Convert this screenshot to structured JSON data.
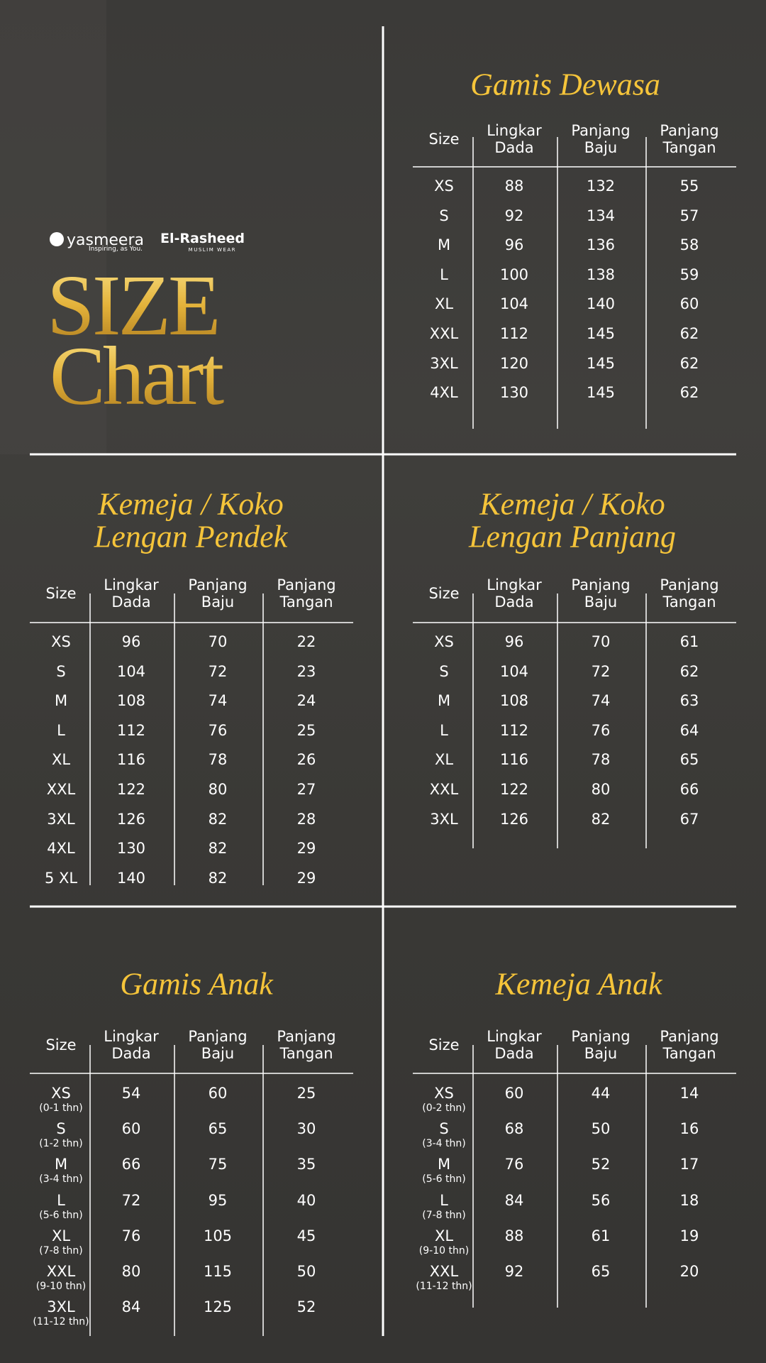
{
  "brand": {
    "logo1": "yasmeera",
    "tagline1": "Inspiring, as You.",
    "logo2": "El-Rasheed",
    "tagline2": "MUSLIM WEAR"
  },
  "title": [
    "SIZE",
    "Chart"
  ],
  "tables": [
    {
      "title": [
        "Gamis Dewasa"
      ],
      "headers": [
        "Size",
        "Lingkar Dada",
        "Panjang Baju",
        "Panjang Tangan"
      ],
      "rows": [
        {
          "size": "XS",
          "values": [
            88,
            132,
            55
          ]
        },
        {
          "size": "S",
          "values": [
            92,
            134,
            57
          ]
        },
        {
          "size": "M",
          "values": [
            96,
            136,
            58
          ]
        },
        {
          "size": "L",
          "values": [
            100,
            138,
            59
          ]
        },
        {
          "size": "XL",
          "values": [
            104,
            140,
            60
          ]
        },
        {
          "size": "XXL",
          "values": [
            112,
            145,
            62
          ]
        },
        {
          "size": "3XL",
          "values": [
            120,
            145,
            62
          ]
        },
        {
          "size": "4XL",
          "values": [
            130,
            145,
            62
          ]
        }
      ]
    },
    {
      "title": [
        "Kemeja / Koko",
        "Lengan Pendek"
      ],
      "headers": [
        "Size",
        "Lingkar Dada",
        "Panjang Baju",
        "Panjang Tangan"
      ],
      "rows": [
        {
          "size": "XS",
          "values": [
            96,
            70,
            22
          ]
        },
        {
          "size": "S",
          "values": [
            104,
            72,
            23
          ]
        },
        {
          "size": "M",
          "values": [
            108,
            74,
            24
          ]
        },
        {
          "size": "L",
          "values": [
            112,
            76,
            25
          ]
        },
        {
          "size": "XL",
          "values": [
            116,
            78,
            26
          ]
        },
        {
          "size": "XXL",
          "values": [
            122,
            80,
            27
          ]
        },
        {
          "size": "3XL",
          "values": [
            126,
            82,
            28
          ]
        },
        {
          "size": "4XL",
          "values": [
            130,
            82,
            29
          ]
        },
        {
          "size": "5 XL",
          "values": [
            140,
            82,
            29
          ]
        }
      ]
    },
    {
      "title": [
        "Kemeja / Koko",
        "Lengan Panjang"
      ],
      "headers": [
        "Size",
        "Lingkar Dada",
        "Panjang Baju",
        "Panjang Tangan"
      ],
      "rows": [
        {
          "size": "XS",
          "values": [
            96,
            70,
            61
          ]
        },
        {
          "size": "S",
          "values": [
            104,
            72,
            62
          ]
        },
        {
          "size": "M",
          "values": [
            108,
            74,
            63
          ]
        },
        {
          "size": "L",
          "values": [
            112,
            76,
            64
          ]
        },
        {
          "size": "XL",
          "values": [
            116,
            78,
            65
          ]
        },
        {
          "size": "XXL",
          "values": [
            122,
            80,
            66
          ]
        },
        {
          "size": "3XL",
          "values": [
            126,
            82,
            67
          ]
        }
      ]
    },
    {
      "title": [
        "Gamis Anak"
      ],
      "headers": [
        "Size",
        "Lingkar Dada",
        "Panjang Baju",
        "Panjang Tangan"
      ],
      "rows": [
        {
          "size": "XS",
          "age": "(0-1 thn)",
          "values": [
            54,
            60,
            25
          ]
        },
        {
          "size": "S",
          "age": "(1-2 thn)",
          "values": [
            60,
            65,
            30
          ]
        },
        {
          "size": "M",
          "age": "(3-4 thn)",
          "values": [
            66,
            75,
            35
          ]
        },
        {
          "size": "L",
          "age": "(5-6 thn)",
          "values": [
            72,
            95,
            40
          ]
        },
        {
          "size": "XL",
          "age": "(7-8 thn)",
          "values": [
            76,
            105,
            45
          ]
        },
        {
          "size": "XXL",
          "age": "(9-10 thn)",
          "values": [
            80,
            115,
            50
          ]
        },
        {
          "size": "3XL",
          "age": "(11-12 thn)",
          "values": [
            84,
            125,
            52
          ]
        }
      ]
    },
    {
      "title": [
        "Kemeja Anak"
      ],
      "headers": [
        "Size",
        "Lingkar Dada",
        "Panjang Baju",
        "Panjang Tangan"
      ],
      "rows": [
        {
          "size": "XS",
          "age": "(0-2 thn)",
          "values": [
            60,
            44,
            14
          ]
        },
        {
          "size": "S",
          "age": "(3-4 thn)",
          "values": [
            68,
            50,
            16
          ]
        },
        {
          "size": "M",
          "age": "(5-6 thn)",
          "values": [
            76,
            52,
            17
          ]
        },
        {
          "size": "L",
          "age": "(7-8 thn)",
          "values": [
            84,
            56,
            18
          ]
        },
        {
          "size": "XL",
          "age": "(9-10 thn)",
          "values": [
            88,
            61,
            19
          ]
        },
        {
          "size": "XXL",
          "age": "(11-12 thn)",
          "values": [
            92,
            65,
            20
          ]
        }
      ]
    }
  ]
}
